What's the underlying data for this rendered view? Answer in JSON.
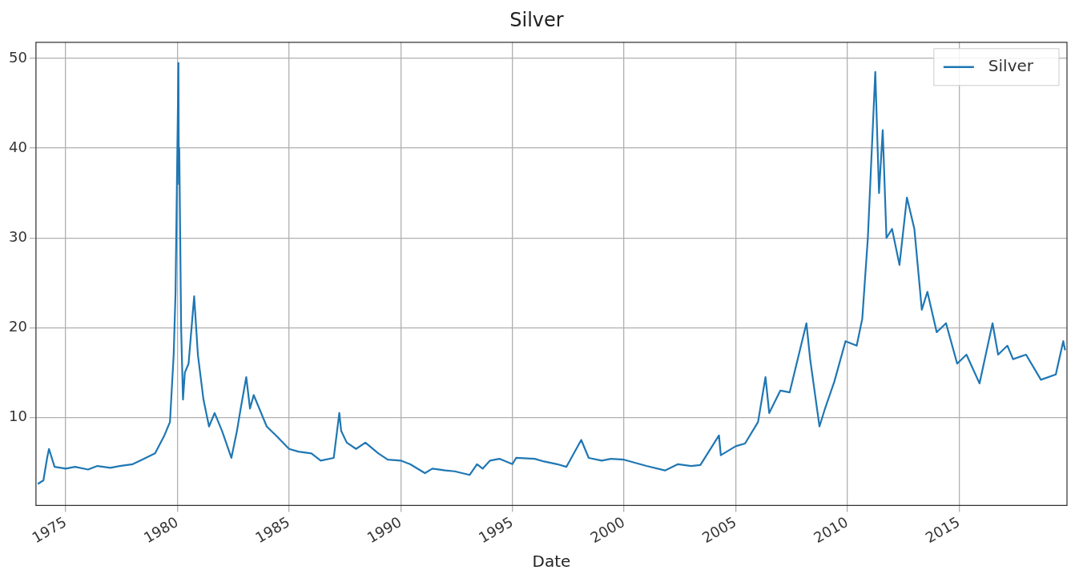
{
  "chart_data": {
    "type": "line",
    "title": "Silver",
    "xlabel": "Date",
    "legend": "top right",
    "grid": true,
    "xlim": [
      "1973-09",
      "2019-11"
    ],
    "ylim": [
      0.2,
      51.8
    ],
    "xticks": [
      "1975",
      "1980",
      "1985",
      "1990",
      "1995",
      "2000",
      "2005",
      "2010",
      "2015"
    ],
    "yticks": [
      10,
      20,
      30,
      40,
      50
    ],
    "series": [
      {
        "name": "Silver",
        "color": "#1f77b4",
        "x": [
          "1973-10",
          "1974-01",
          "1974-03",
          "1974-04",
          "1974-07",
          "1975-01",
          "1975-06",
          "1976-01",
          "1976-06",
          "1977-01",
          "1977-06",
          "1978-01",
          "1978-06",
          "1979-01",
          "1979-06",
          "1979-09",
          "1979-11",
          "1979-12",
          "1980-01-18",
          "1980-01-25",
          "1980-02",
          "1980-03",
          "1980-04",
          "1980-05",
          "1980-07",
          "1980-09",
          "1980-10",
          "1980-12",
          "1981-03",
          "1981-06",
          "1981-09",
          "1982-01",
          "1982-06",
          "1982-09",
          "1982-11",
          "1983-02",
          "1983-04",
          "1983-06",
          "1984-01",
          "1984-06",
          "1985-01",
          "1985-06",
          "1986-01",
          "1986-06",
          "1987-01",
          "1987-04",
          "1987-05",
          "1987-08",
          "1988-01",
          "1988-06",
          "1989-01",
          "1989-06",
          "1990-01",
          "1990-06",
          "1991-02",
          "1991-06",
          "1992-01",
          "1992-06",
          "1993-02",
          "1993-06",
          "1993-09",
          "1994-01",
          "1994-06",
          "1995-01",
          "1995-03",
          "1996-01",
          "1996-06",
          "1997-01",
          "1997-06",
          "1998-02",
          "1998-06",
          "1999-01",
          "1999-06",
          "2000-01",
          "2000-06",
          "2001-01",
          "2001-11",
          "2002-06",
          "2003-01",
          "2003-06",
          "2004-04",
          "2004-05",
          "2005-01",
          "2005-06",
          "2006-01",
          "2006-05",
          "2006-07",
          "2007-01",
          "2007-06",
          "2008-03",
          "2008-05",
          "2008-10",
          "2009-01",
          "2009-06",
          "2009-12",
          "2010-06",
          "2010-09",
          "2010-12",
          "2011-04",
          "2011-06",
          "2011-08",
          "2011-10",
          "2012-01",
          "2012-05",
          "2012-09",
          "2013-01",
          "2013-05",
          "2013-08",
          "2014-01",
          "2014-06",
          "2014-12",
          "2015-05",
          "2015-12",
          "2016-07",
          "2016-10",
          "2017-03",
          "2017-06",
          "2018-01",
          "2018-09",
          "2019-05",
          "2019-09",
          "2019-10"
        ],
        "values": [
          2.6,
          3.0,
          5.5,
          6.5,
          4.5,
          4.3,
          4.5,
          4.2,
          4.6,
          4.4,
          4.6,
          4.8,
          5.3,
          6.0,
          8.0,
          9.5,
          17.0,
          24.0,
          49.5,
          36.0,
          40.0,
          20.0,
          12.0,
          15.0,
          16.0,
          21.0,
          23.5,
          17.0,
          12.0,
          9.0,
          10.5,
          8.5,
          5.5,
          8.5,
          11.0,
          14.5,
          11.0,
          12.5,
          9.0,
          8.0,
          6.5,
          6.2,
          6.0,
          5.2,
          5.5,
          10.5,
          8.5,
          7.2,
          6.5,
          7.2,
          6.0,
          5.3,
          5.2,
          4.8,
          3.8,
          4.3,
          4.1,
          4.0,
          3.6,
          4.8,
          4.3,
          5.2,
          5.4,
          4.8,
          5.5,
          5.4,
          5.1,
          4.8,
          4.5,
          7.5,
          5.5,
          5.2,
          5.4,
          5.3,
          5.0,
          4.6,
          4.1,
          4.8,
          4.6,
          4.7,
          8.0,
          5.8,
          6.8,
          7.1,
          9.5,
          14.5,
          10.5,
          13.0,
          12.8,
          20.5,
          16.5,
          9.0,
          11.0,
          14.0,
          18.5,
          18.0,
          21.0,
          30.0,
          48.5,
          35.0,
          42.0,
          30.0,
          31.0,
          27.0,
          34.5,
          31.0,
          22.0,
          24.0,
          19.5,
          20.5,
          16.0,
          17.0,
          13.8,
          20.5,
          17.0,
          18.0,
          16.5,
          17.0,
          14.2,
          14.8,
          18.5,
          17.5
        ]
      }
    ]
  }
}
